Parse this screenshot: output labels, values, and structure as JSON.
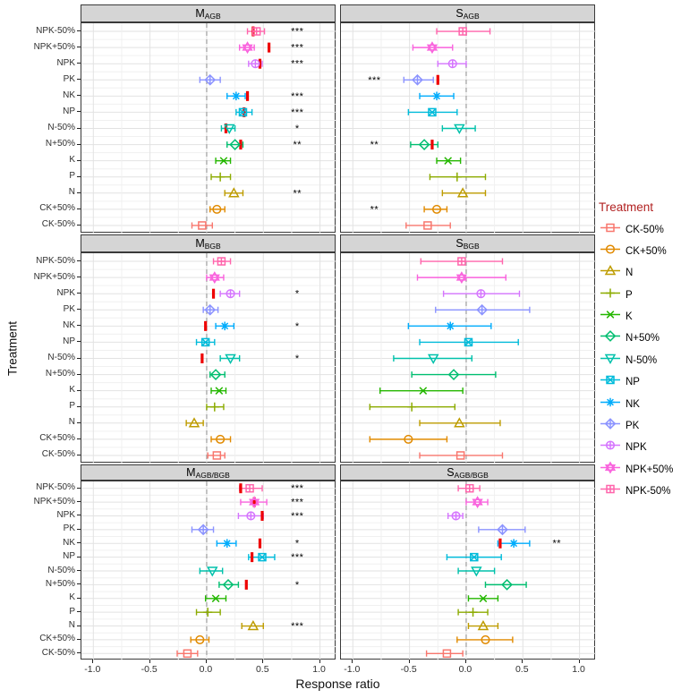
{
  "chart_data": {
    "type": "scatter",
    "subtype": "forest-plot-grid",
    "x_axis": {
      "label": "Response ratio",
      "tick_labels": [
        "-1.0",
        "-0.5",
        "0.0",
        "0.5",
        "1.0"
      ],
      "tick_values": [
        -1.0,
        -0.5,
        0.0,
        0.5,
        1.0
      ],
      "range": [
        -1.1,
        1.1
      ],
      "minor_step": 0.25,
      "zero_reference_line": true
    },
    "y_axis": {
      "label": "Treatment",
      "categories_top_to_bottom": [
        "NPK-50%",
        "NPK+50%",
        "NPK",
        "PK",
        "NK",
        "NP",
        "N-50%",
        "N+50%",
        "K",
        "P",
        "N",
        "CK+50%",
        "CK-50%"
      ]
    },
    "legend": {
      "title": "Treatment",
      "position": "right",
      "entries": [
        {
          "label": "CK-50%",
          "color": "#F8766D",
          "shape": "square"
        },
        {
          "label": "CK+50%",
          "color": "#E18A00",
          "shape": "circle"
        },
        {
          "label": "N",
          "color": "#BE9C00",
          "shape": "triangle-up"
        },
        {
          "label": "P",
          "color": "#8CAB00",
          "shape": "plus"
        },
        {
          "label": "K",
          "color": "#24B700",
          "shape": "x"
        },
        {
          "label": "N+50%",
          "color": "#00BE70",
          "shape": "diamond"
        },
        {
          "label": "N-50%",
          "color": "#00C1AB",
          "shape": "triangle-down"
        },
        {
          "label": "NP",
          "color": "#00BBDA",
          "shape": "square-x"
        },
        {
          "label": "NK",
          "color": "#00ACFC",
          "shape": "asterisk"
        },
        {
          "label": "PK",
          "color": "#8B93FF",
          "shape": "diamond-plus"
        },
        {
          "label": "NPK",
          "color": "#D575FE",
          "shape": "circle-plus"
        },
        {
          "label": "NPK+50%",
          "color": "#F962DD",
          "shape": "star6"
        },
        {
          "label": "NPK-50%",
          "color": "#FF65AC",
          "shape": "square-plus"
        }
      ]
    },
    "panels": [
      {
        "id": "M_AGB",
        "title_prefix": "M",
        "title_sub": "AGB",
        "points": [
          {
            "t": "NPK-50%",
            "x": 0.44,
            "lo": 0.36,
            "hi": 0.51,
            "red": 0.41,
            "sig": "***",
            "sig_side": "right"
          },
          {
            "t": "NPK+50%",
            "x": 0.36,
            "lo": 0.29,
            "hi": 0.42,
            "red": 0.55,
            "sig": "***",
            "sig_side": "right"
          },
          {
            "t": "NPK",
            "x": 0.43,
            "lo": 0.37,
            "hi": 0.49,
            "red": 0.47,
            "sig": "***",
            "sig_side": "right"
          },
          {
            "t": "PK",
            "x": 0.03,
            "lo": -0.06,
            "hi": 0.12
          },
          {
            "t": "NK",
            "x": 0.26,
            "lo": 0.18,
            "hi": 0.34,
            "red": 0.36,
            "sig": "***",
            "sig_side": "right"
          },
          {
            "t": "NP",
            "x": 0.32,
            "lo": 0.26,
            "hi": 0.4,
            "red": 0.33,
            "sig": "***",
            "sig_side": "right"
          },
          {
            "t": "N-50%",
            "x": 0.2,
            "lo": 0.13,
            "hi": 0.25,
            "red": 0.17,
            "sig": "*",
            "sig_side": "right"
          },
          {
            "t": "N+50%",
            "x": 0.25,
            "lo": 0.18,
            "hi": 0.32,
            "red": 0.3,
            "sig": "**",
            "sig_side": "right"
          },
          {
            "t": "K",
            "x": 0.15,
            "lo": 0.08,
            "hi": 0.21
          },
          {
            "t": "P",
            "x": 0.12,
            "lo": 0.04,
            "hi": 0.21
          },
          {
            "t": "N",
            "x": 0.24,
            "lo": 0.16,
            "hi": 0.32,
            "sig": "**",
            "sig_side": "right"
          },
          {
            "t": "CK+50%",
            "x": 0.09,
            "lo": 0.03,
            "hi": 0.16
          },
          {
            "t": "CK-50%",
            "x": -0.04,
            "lo": -0.13,
            "hi": 0.05
          }
        ]
      },
      {
        "id": "S_AGB",
        "title_prefix": "S",
        "title_sub": "AGB",
        "points": [
          {
            "t": "NPK-50%",
            "x": -0.03,
            "lo": -0.26,
            "hi": 0.21
          },
          {
            "t": "NPK+50%",
            "x": -0.3,
            "lo": -0.47,
            "hi": -0.12
          },
          {
            "t": "NPK",
            "x": -0.12,
            "lo": -0.25,
            "hi": 0.0
          },
          {
            "t": "PK",
            "x": -0.43,
            "lo": -0.55,
            "hi": -0.29,
            "red": -0.25,
            "sig": "***",
            "sig_side": "left"
          },
          {
            "t": "NK",
            "x": -0.26,
            "lo": -0.41,
            "hi": -0.11
          },
          {
            "t": "NP",
            "x": -0.3,
            "lo": -0.51,
            "hi": -0.08
          },
          {
            "t": "N-50%",
            "x": -0.06,
            "lo": -0.21,
            "hi": 0.08
          },
          {
            "t": "N+50%",
            "x": -0.37,
            "lo": -0.49,
            "hi": -0.25,
            "red": -0.3,
            "sig": "**",
            "sig_side": "left"
          },
          {
            "t": "K",
            "x": -0.16,
            "lo": -0.26,
            "hi": -0.05
          },
          {
            "t": "P",
            "x": -0.08,
            "lo": -0.32,
            "hi": 0.17
          },
          {
            "t": "N",
            "x": -0.03,
            "lo": -0.21,
            "hi": 0.17
          },
          {
            "t": "CK+50%",
            "x": -0.26,
            "lo": -0.37,
            "hi": -0.17,
            "sig": "**",
            "sig_side": "left"
          },
          {
            "t": "CK-50%",
            "x": -0.34,
            "lo": -0.53,
            "hi": -0.14
          }
        ]
      },
      {
        "id": "M_BGB",
        "title_prefix": "M",
        "title_sub": "BGB",
        "points": [
          {
            "t": "NPK-50%",
            "x": 0.13,
            "lo": 0.06,
            "hi": 0.21
          },
          {
            "t": "NPK+50%",
            "x": 0.07,
            "lo": 0.0,
            "hi": 0.15
          },
          {
            "t": "NPK",
            "x": 0.21,
            "lo": 0.12,
            "hi": 0.29,
            "red": 0.06,
            "sig": "*",
            "sig_side": "right"
          },
          {
            "t": "PK",
            "x": 0.03,
            "lo": -0.03,
            "hi": 0.1
          },
          {
            "t": "NK",
            "x": 0.16,
            "lo": 0.08,
            "hi": 0.24,
            "red": -0.01,
            "sig": "*",
            "sig_side": "right"
          },
          {
            "t": "NP",
            "x": -0.01,
            "lo": -0.09,
            "hi": 0.07
          },
          {
            "t": "N-50%",
            "x": 0.21,
            "lo": 0.12,
            "hi": 0.29,
            "red": -0.04,
            "sig": "*",
            "sig_side": "right"
          },
          {
            "t": "N+50%",
            "x": 0.08,
            "lo": 0.03,
            "hi": 0.16
          },
          {
            "t": "K",
            "x": 0.11,
            "lo": 0.04,
            "hi": 0.17
          },
          {
            "t": "P",
            "x": 0.07,
            "lo": 0.0,
            "hi": 0.15
          },
          {
            "t": "N",
            "x": -0.11,
            "lo": -0.18,
            "hi": -0.03
          },
          {
            "t": "CK+50%",
            "x": 0.12,
            "lo": 0.04,
            "hi": 0.21
          },
          {
            "t": "CK-50%",
            "x": 0.09,
            "lo": 0.01,
            "hi": 0.16
          }
        ]
      },
      {
        "id": "S_BGB",
        "title_prefix": "S",
        "title_sub": "BGB",
        "points": [
          {
            "t": "NPK-50%",
            "x": -0.04,
            "lo": -0.4,
            "hi": 0.32
          },
          {
            "t": "NPK+50%",
            "x": -0.04,
            "lo": -0.43,
            "hi": 0.35
          },
          {
            "t": "NPK",
            "x": 0.13,
            "lo": -0.2,
            "hi": 0.47
          },
          {
            "t": "PK",
            "x": 0.14,
            "lo": -0.27,
            "hi": 0.56
          },
          {
            "t": "NK",
            "x": -0.14,
            "lo": -0.51,
            "hi": 0.22
          },
          {
            "t": "NP",
            "x": 0.02,
            "lo": -0.41,
            "hi": 0.46
          },
          {
            "t": "N-50%",
            "x": -0.29,
            "lo": -0.64,
            "hi": 0.05
          },
          {
            "t": "N+50%",
            "x": -0.11,
            "lo": -0.48,
            "hi": 0.26
          },
          {
            "t": "K",
            "x": -0.38,
            "lo": -0.76,
            "hi": -0.03
          },
          {
            "t": "P",
            "x": -0.48,
            "lo": -0.85,
            "hi": -0.1
          },
          {
            "t": "N",
            "x": -0.06,
            "lo": -0.41,
            "hi": 0.3
          },
          {
            "t": "CK+50%",
            "x": -0.51,
            "lo": -0.85,
            "hi": -0.17
          },
          {
            "t": "CK-50%",
            "x": -0.05,
            "lo": -0.41,
            "hi": 0.32
          }
        ]
      },
      {
        "id": "M_AGB/BGB",
        "title_prefix": "M",
        "title_sub": "AGB/BGB",
        "points": [
          {
            "t": "NPK-50%",
            "x": 0.38,
            "lo": 0.29,
            "hi": 0.49,
            "red": 0.3,
            "sig": "***",
            "sig_side": "right"
          },
          {
            "t": "NPK+50%",
            "x": 0.42,
            "lo": 0.3,
            "hi": 0.53,
            "red": 0.42,
            "sig": "***",
            "sig_side": "right"
          },
          {
            "t": "NPK",
            "x": 0.39,
            "lo": 0.28,
            "hi": 0.5,
            "red": 0.49,
            "sig": "***",
            "sig_side": "right"
          },
          {
            "t": "PK",
            "x": -0.03,
            "lo": -0.13,
            "hi": 0.06
          },
          {
            "t": "NK",
            "x": 0.18,
            "lo": 0.09,
            "hi": 0.26,
            "red": 0.47,
            "sig": "*",
            "sig_side": "right"
          },
          {
            "t": "NP",
            "x": 0.49,
            "lo": 0.37,
            "hi": 0.6,
            "red": 0.4,
            "sig": "***",
            "sig_side": "right"
          },
          {
            "t": "N-50%",
            "x": 0.05,
            "lo": -0.06,
            "hi": 0.14
          },
          {
            "t": "N+50%",
            "x": 0.19,
            "lo": 0.11,
            "hi": 0.28,
            "red": 0.35,
            "sig": "*",
            "sig_side": "right"
          },
          {
            "t": "K",
            "x": 0.08,
            "lo": -0.01,
            "hi": 0.17
          },
          {
            "t": "P",
            "x": 0.01,
            "lo": -0.09,
            "hi": 0.12
          },
          {
            "t": "N",
            "x": 0.41,
            "lo": 0.31,
            "hi": 0.5,
            "sig": "***",
            "sig_side": "right"
          },
          {
            "t": "CK+50%",
            "x": -0.06,
            "lo": -0.14,
            "hi": 0.02
          },
          {
            "t": "CK-50%",
            "x": -0.17,
            "lo": -0.26,
            "hi": -0.08
          }
        ]
      },
      {
        "id": "S_AGB/BGB",
        "title_prefix": "S",
        "title_sub": "AGB/BGB",
        "points": [
          {
            "t": "NPK-50%",
            "x": 0.03,
            "lo": -0.07,
            "hi": 0.12
          },
          {
            "t": "NPK+50%",
            "x": 0.1,
            "lo": 0.0,
            "hi": 0.19
          },
          {
            "t": "NPK",
            "x": -0.09,
            "lo": -0.16,
            "hi": -0.03
          },
          {
            "t": "PK",
            "x": 0.32,
            "lo": 0.11,
            "hi": 0.52
          },
          {
            "t": "NK",
            "x": 0.42,
            "lo": 0.28,
            "hi": 0.56,
            "red": 0.3,
            "sig": "**",
            "sig_side": "right"
          },
          {
            "t": "NP",
            "x": 0.07,
            "lo": -0.17,
            "hi": 0.31
          },
          {
            "t": "N-50%",
            "x": 0.09,
            "lo": -0.07,
            "hi": 0.25
          },
          {
            "t": "N+50%",
            "x": 0.36,
            "lo": 0.17,
            "hi": 0.53
          },
          {
            "t": "K",
            "x": 0.15,
            "lo": 0.02,
            "hi": 0.28
          },
          {
            "t": "P",
            "x": 0.06,
            "lo": -0.07,
            "hi": 0.19
          },
          {
            "t": "N",
            "x": 0.15,
            "lo": 0.02,
            "hi": 0.28
          },
          {
            "t": "CK+50%",
            "x": 0.17,
            "lo": -0.08,
            "hi": 0.41
          },
          {
            "t": "CK-50%",
            "x": -0.17,
            "lo": -0.35,
            "hi": -0.03
          }
        ]
      }
    ],
    "significance_marker_positions": {
      "right": 0.8,
      "left": -0.81
    },
    "styles": {
      "red_tick": "#EE0000",
      "legend_title": "#B22222",
      "strip_bg": "#D5D5D5",
      "panel_border": "#3A3A3A",
      "grid_major": "#E2E2E2",
      "grid_minor": "#F0F0F0",
      "zero_line": "#ABABAB",
      "axis_text": "#303030",
      "sig_text": "#000000"
    }
  }
}
